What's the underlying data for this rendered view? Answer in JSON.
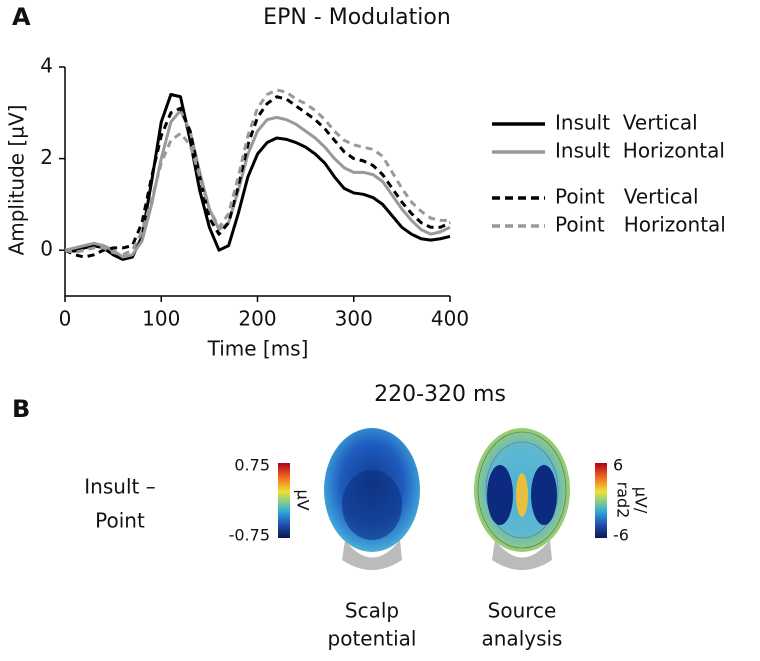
{
  "chart_data": {
    "type": "line",
    "panel_label": "A",
    "title": "EPN - Modulation",
    "x_label": "Time [ms]",
    "y_label": "Amplitude [µV]",
    "x": [
      0,
      10,
      20,
      30,
      40,
      50,
      60,
      70,
      80,
      90,
      100,
      110,
      120,
      130,
      140,
      150,
      160,
      170,
      180,
      190,
      200,
      210,
      220,
      230,
      240,
      250,
      260,
      270,
      280,
      290,
      300,
      310,
      320,
      330,
      340,
      350,
      360,
      370,
      380,
      390,
      400
    ],
    "series": [
      {
        "name": "Insult  Vertical",
        "color": "#000000",
        "style": "solid",
        "values": [
          0,
          -0.02,
          0.05,
          0.1,
          0.05,
          -0.1,
          -0.2,
          -0.15,
          0.3,
          1.5,
          2.8,
          3.4,
          3.35,
          2.4,
          1.3,
          0.5,
          0.0,
          0.1,
          0.8,
          1.6,
          2.1,
          2.35,
          2.45,
          2.42,
          2.35,
          2.25,
          2.1,
          1.9,
          1.6,
          1.35,
          1.25,
          1.22,
          1.15,
          1.0,
          0.75,
          0.5,
          0.35,
          0.25,
          0.22,
          0.25,
          0.3
        ]
      },
      {
        "name": "Insult  Horizontal",
        "color": "#999999",
        "style": "solid",
        "values": [
          0,
          0.05,
          0.1,
          0.15,
          0.1,
          0,
          -0.15,
          -0.1,
          0.2,
          1.0,
          2.0,
          2.8,
          3.05,
          2.6,
          1.7,
          0.9,
          0.45,
          0.6,
          1.3,
          2.1,
          2.6,
          2.85,
          2.9,
          2.85,
          2.75,
          2.6,
          2.45,
          2.25,
          2.0,
          1.8,
          1.7,
          1.7,
          1.65,
          1.5,
          1.2,
          0.9,
          0.65,
          0.45,
          0.35,
          0.4,
          0.5
        ]
      },
      {
        "name": "Point   Vertical",
        "color": "#000000",
        "style": "dashed",
        "values": [
          0,
          -0.1,
          -0.15,
          -0.1,
          0,
          0.05,
          0.05,
          0.1,
          0.6,
          1.6,
          2.5,
          3.0,
          3.1,
          2.6,
          1.6,
          0.7,
          0.35,
          0.6,
          1.4,
          2.3,
          2.9,
          3.2,
          3.35,
          3.3,
          3.15,
          3.0,
          2.85,
          2.65,
          2.4,
          2.15,
          2.0,
          1.95,
          1.85,
          1.65,
          1.35,
          1.05,
          0.8,
          0.6,
          0.5,
          0.5,
          0.6
        ]
      },
      {
        "name": "Point   Horizontal",
        "color": "#999999",
        "style": "dashed",
        "values": [
          0,
          -0.05,
          0,
          0.05,
          0.05,
          -0.05,
          -0.1,
          0,
          0.4,
          1.1,
          1.9,
          2.4,
          2.55,
          2.3,
          1.6,
          0.9,
          0.5,
          0.8,
          1.6,
          2.5,
          3.1,
          3.4,
          3.5,
          3.45,
          3.3,
          3.2,
          3.05,
          2.85,
          2.6,
          2.4,
          2.3,
          2.25,
          2.2,
          2.05,
          1.7,
          1.35,
          1.05,
          0.85,
          0.7,
          0.65,
          0.65
        ]
      }
    ],
    "xlim": [
      0,
      400
    ],
    "xticks": [
      0,
      100,
      200,
      300,
      400
    ],
    "ylim": [
      -1,
      4
    ],
    "yticks": [
      0,
      2,
      4
    ],
    "grid": false
  },
  "panel_b": {
    "panel_label": "B",
    "title": "220-320 ms",
    "row_label": [
      "Insult –",
      "Point"
    ],
    "scalp": {
      "colorbar_max": 0.75,
      "colorbar_min": -0.75,
      "unit": "µV",
      "caption": [
        "Scalp",
        "potential"
      ]
    },
    "source": {
      "colorbar_max": 6,
      "colorbar_min": -6,
      "unit": [
        "µV/",
        "rad2"
      ],
      "caption": [
        "Source",
        "analysis"
      ]
    }
  }
}
